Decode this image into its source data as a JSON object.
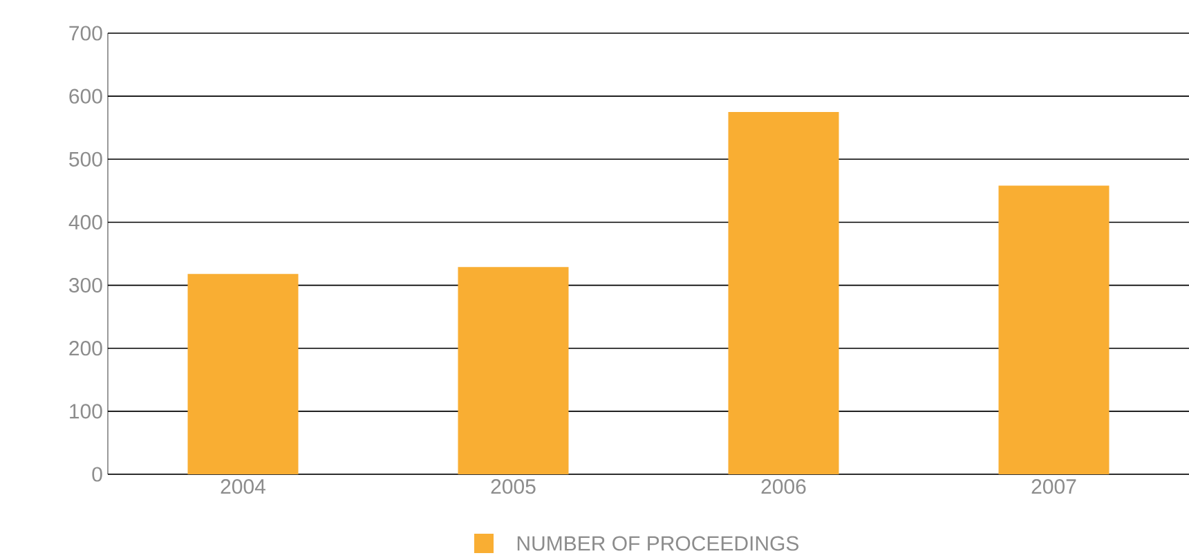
{
  "chart_data": {
    "type": "bar",
    "categories": [
      "2004",
      "2005",
      "2006",
      "2007"
    ],
    "series": [
      {
        "name": "NUMBER OF PROCEEDINGS",
        "color": "#f9ae33",
        "values": [
          318,
          329,
          575,
          458
        ]
      }
    ],
    "ylim": [
      0,
      700
    ],
    "yticks": [
      0,
      100,
      200,
      300,
      400,
      500,
      600,
      700
    ],
    "grid": "y",
    "legend": "bottom"
  }
}
